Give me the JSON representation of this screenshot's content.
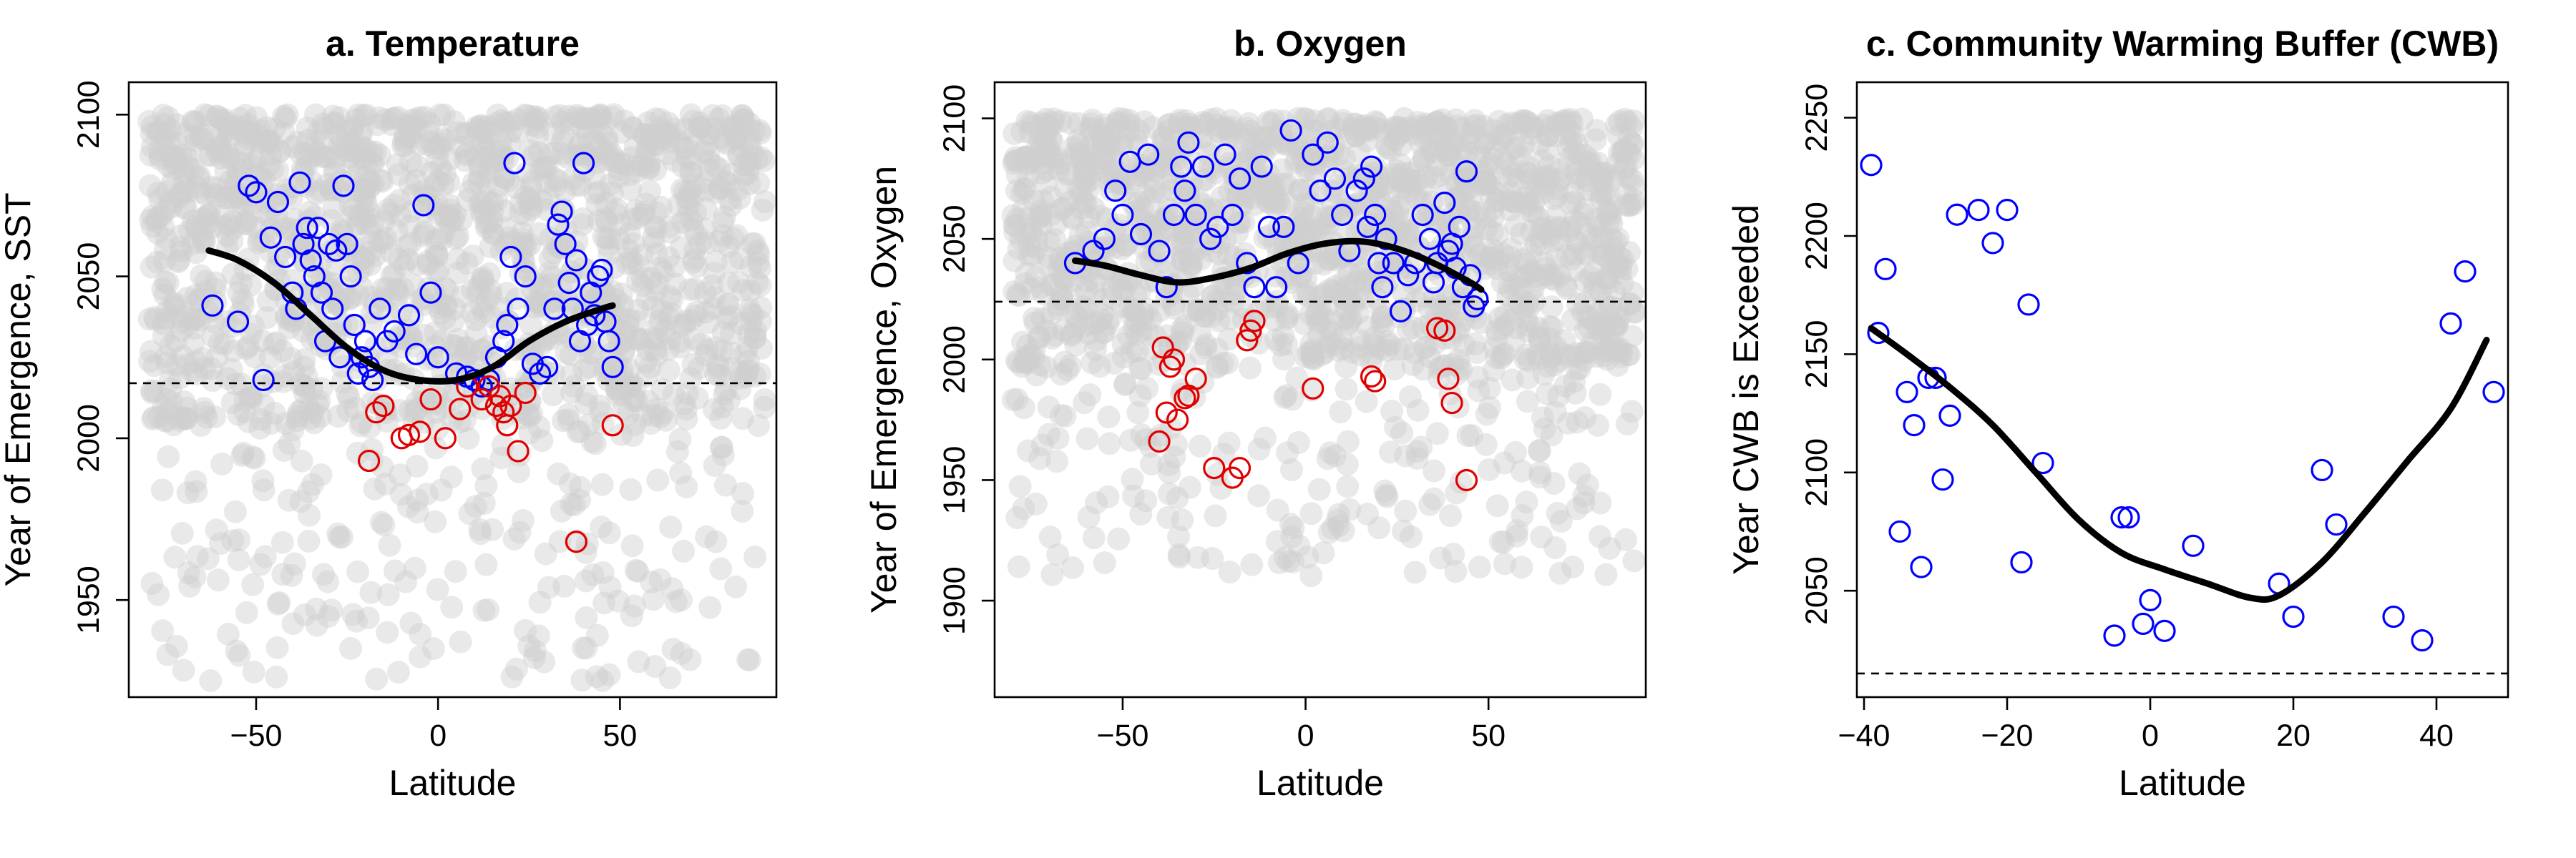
{
  "chart_data": [
    {
      "id": "temperature",
      "type": "scatter",
      "title": "a. Temperature",
      "xlabel": "Latitude",
      "ylabel": "Year of Emergence, SST",
      "xlim": [
        -85,
        93
      ],
      "ylim": [
        1920,
        2110
      ],
      "xticks": [
        -50,
        0,
        50
      ],
      "yticks": [
        1950,
        2000,
        2050,
        2100
      ],
      "reference_line_y": 2017,
      "background_cloud": {
        "color": "#cfcfcf",
        "x_range": [
          -80,
          90
        ],
        "y_range": [
          1925,
          2100
        ]
      },
      "series": [
        {
          "color": "#0000ff",
          "marker": "open-circle",
          "points": [
            [
              -62,
              2041
            ],
            [
              -55,
              2036
            ],
            [
              -52,
              2078
            ],
            [
              -50,
              2076
            ],
            [
              -48,
              2018
            ],
            [
              -46,
              2062
            ],
            [
              -44,
              2073
            ],
            [
              -42,
              2056
            ],
            [
              -40,
              2045
            ],
            [
              -39,
              2040
            ],
            [
              -38,
              2079
            ],
            [
              -37,
              2060
            ],
            [
              -36,
              2065
            ],
            [
              -35,
              2055
            ],
            [
              -34,
              2050
            ],
            [
              -33,
              2065
            ],
            [
              -32,
              2045
            ],
            [
              -31,
              2030
            ],
            [
              -30,
              2060
            ],
            [
              -29,
              2040
            ],
            [
              -28,
              2058
            ],
            [
              -27,
              2025
            ],
            [
              -26,
              2078
            ],
            [
              -25,
              2060
            ],
            [
              -24,
              2050
            ],
            [
              -23,
              2035
            ],
            [
              -22,
              2020
            ],
            [
              -21,
              2025
            ],
            [
              -20,
              2030
            ],
            [
              -19,
              2022
            ],
            [
              -18,
              2018
            ],
            [
              -16,
              2040
            ],
            [
              -14,
              2030
            ],
            [
              -12,
              2033
            ],
            [
              -8,
              2038
            ],
            [
              -6,
              2026
            ],
            [
              -4,
              2072
            ],
            [
              -2,
              2045
            ],
            [
              0,
              2025
            ],
            [
              5,
              2020
            ],
            [
              8,
              2019
            ],
            [
              10,
              2018
            ],
            [
              12,
              2016
            ],
            [
              14,
              2018
            ],
            [
              16,
              2025
            ],
            [
              18,
              2030
            ],
            [
              19,
              2035
            ],
            [
              20,
              2056
            ],
            [
              21,
              2085
            ],
            [
              22,
              2040
            ],
            [
              24,
              2050
            ],
            [
              26,
              2023
            ],
            [
              28,
              2020
            ],
            [
              30,
              2022
            ],
            [
              32,
              2040
            ],
            [
              33,
              2066
            ],
            [
              34,
              2070
            ],
            [
              35,
              2060
            ],
            [
              36,
              2048
            ],
            [
              37,
              2040
            ],
            [
              38,
              2055
            ],
            [
              39,
              2030
            ],
            [
              40,
              2085
            ],
            [
              41,
              2035
            ],
            [
              42,
              2045
            ],
            [
              43,
              2038
            ],
            [
              44,
              2050
            ],
            [
              45,
              2052
            ],
            [
              46,
              2036
            ],
            [
              47,
              2030
            ],
            [
              48,
              2022
            ]
          ]
        },
        {
          "color": "#e00000",
          "marker": "open-circle",
          "points": [
            [
              -19,
              1993
            ],
            [
              -17,
              2008
            ],
            [
              -15,
              2010
            ],
            [
              -10,
              2000
            ],
            [
              -8,
              2001
            ],
            [
              -5,
              2002
            ],
            [
              -2,
              2012
            ],
            [
              2,
              2000
            ],
            [
              6,
              2009
            ],
            [
              8,
              2016
            ],
            [
              12,
              2012
            ],
            [
              14,
              2016
            ],
            [
              16,
              2010
            ],
            [
              17,
              2013
            ],
            [
              18,
              2008
            ],
            [
              19,
              2004
            ],
            [
              20,
              2010
            ],
            [
              22,
              1996
            ],
            [
              24,
              2014
            ],
            [
              38,
              1968
            ],
            [
              48,
              2004
            ]
          ]
        }
      ],
      "trend_line": [
        [
          -63,
          2058
        ],
        [
          -55,
          2055
        ],
        [
          -45,
          2048
        ],
        [
          -35,
          2038
        ],
        [
          -25,
          2028
        ],
        [
          -15,
          2021
        ],
        [
          -5,
          2018
        ],
        [
          5,
          2018
        ],
        [
          15,
          2022
        ],
        [
          25,
          2030
        ],
        [
          35,
          2036
        ],
        [
          45,
          2040
        ],
        [
          48,
          2041
        ]
      ]
    },
    {
      "id": "oxygen",
      "type": "scatter",
      "title": "b. Oxygen",
      "xlabel": "Latitude",
      "ylabel": "Year of Emergence, Oxygen",
      "xlim": [
        -85,
        93
      ],
      "ylim": [
        1860,
        2115
      ],
      "xticks": [
        -50,
        0,
        50
      ],
      "yticks": [
        1900,
        1950,
        2000,
        2050,
        2100
      ],
      "reference_line_y": 2024,
      "background_cloud": {
        "color": "#cfcfcf",
        "x_range": [
          -80,
          90
        ],
        "y_range": [
          1910,
          2100
        ]
      },
      "series": [
        {
          "color": "#0000ff",
          "marker": "open-circle",
          "points": [
            [
              -63,
              2040
            ],
            [
              -58,
              2045
            ],
            [
              -55,
              2050
            ],
            [
              -52,
              2070
            ],
            [
              -50,
              2060
            ],
            [
              -48,
              2082
            ],
            [
              -45,
              2052
            ],
            [
              -43,
              2085
            ],
            [
              -40,
              2045
            ],
            [
              -38,
              2030
            ],
            [
              -36,
              2060
            ],
            [
              -34,
              2080
            ],
            [
              -33,
              2070
            ],
            [
              -32,
              2090
            ],
            [
              -30,
              2060
            ],
            [
              -28,
              2080
            ],
            [
              -26,
              2050
            ],
            [
              -24,
              2055
            ],
            [
              -22,
              2085
            ],
            [
              -20,
              2060
            ],
            [
              -18,
              2075
            ],
            [
              -16,
              2040
            ],
            [
              -14,
              2030
            ],
            [
              -12,
              2080
            ],
            [
              -10,
              2055
            ],
            [
              -8,
              2030
            ],
            [
              -6,
              2055
            ],
            [
              -4,
              2095
            ],
            [
              -2,
              2040
            ],
            [
              2,
              2085
            ],
            [
              4,
              2070
            ],
            [
              6,
              2090
            ],
            [
              8,
              2075
            ],
            [
              10,
              2060
            ],
            [
              12,
              2045
            ],
            [
              14,
              2070
            ],
            [
              16,
              2075
            ],
            [
              17,
              2055
            ],
            [
              18,
              2080
            ],
            [
              19,
              2060
            ],
            [
              20,
              2040
            ],
            [
              21,
              2030
            ],
            [
              22,
              2050
            ],
            [
              24,
              2040
            ],
            [
              26,
              2020
            ],
            [
              28,
              2035
            ],
            [
              30,
              2040
            ],
            [
              32,
              2060
            ],
            [
              34,
              2050
            ],
            [
              35,
              2032
            ],
            [
              36,
              2040
            ],
            [
              38,
              2065
            ],
            [
              39,
              2045
            ],
            [
              40,
              2048
            ],
            [
              41,
              2038
            ],
            [
              42,
              2055
            ],
            [
              43,
              2030
            ],
            [
              44,
              2078
            ],
            [
              45,
              2035
            ],
            [
              46,
              2022
            ],
            [
              47,
              2025
            ]
          ]
        },
        {
          "color": "#e00000",
          "marker": "open-circle",
          "points": [
            [
              -40,
              1966
            ],
            [
              -39,
              2005
            ],
            [
              -38,
              1978
            ],
            [
              -37,
              1997
            ],
            [
              -36,
              2000
            ],
            [
              -35,
              1975
            ],
            [
              -33,
              1984
            ],
            [
              -32,
              1985
            ],
            [
              -30,
              1992
            ],
            [
              -25,
              1955
            ],
            [
              -20,
              1951
            ],
            [
              -18,
              1955
            ],
            [
              -16,
              2008
            ],
            [
              -15,
              2012
            ],
            [
              -14,
              2016
            ],
            [
              2,
              1988
            ],
            [
              18,
              1993
            ],
            [
              19,
              1991
            ],
            [
              36,
              2013
            ],
            [
              38,
              2012
            ],
            [
              39,
              1992
            ],
            [
              40,
              1982
            ],
            [
              44,
              1950
            ]
          ]
        }
      ],
      "trend_line": [
        [
          -63,
          2041
        ],
        [
          -55,
          2039
        ],
        [
          -45,
          2035
        ],
        [
          -35,
          2032
        ],
        [
          -25,
          2034
        ],
        [
          -15,
          2038
        ],
        [
          -5,
          2044
        ],
        [
          5,
          2048
        ],
        [
          15,
          2049
        ],
        [
          25,
          2046
        ],
        [
          35,
          2040
        ],
        [
          45,
          2032
        ],
        [
          48,
          2029
        ]
      ]
    },
    {
      "id": "cwb",
      "type": "scatter",
      "title": "c. Community Warming Buffer (CWB)",
      "xlabel": "Latitude",
      "ylabel": "Year CWB is Exceeded",
      "xlim": [
        -41,
        50
      ],
      "ylim": [
        2005,
        2265
      ],
      "xticks": [
        -40,
        -20,
        0,
        20,
        40
      ],
      "yticks": [
        2050,
        2100,
        2150,
        2200,
        2250
      ],
      "reference_line_y": 2015,
      "series": [
        {
          "color": "#0000ff",
          "marker": "open-circle",
          "points": [
            [
              -39,
              2230
            ],
            [
              -38,
              2159
            ],
            [
              -37,
              2186
            ],
            [
              -35,
              2075
            ],
            [
              -34,
              2134
            ],
            [
              -33,
              2120
            ],
            [
              -32,
              2060
            ],
            [
              -31,
              2140
            ],
            [
              -30,
              2140
            ],
            [
              -29,
              2097
            ],
            [
              -28,
              2124
            ],
            [
              -27,
              2209
            ],
            [
              -24,
              2211
            ],
            [
              -22,
              2197
            ],
            [
              -20,
              2211
            ],
            [
              -18,
              2062
            ],
            [
              -17,
              2171
            ],
            [
              -15,
              2104
            ],
            [
              -5,
              2031
            ],
            [
              -4,
              2081
            ],
            [
              -3,
              2081
            ],
            [
              -1,
              2036
            ],
            [
              0,
              2046
            ],
            [
              2,
              2033
            ],
            [
              6,
              2069
            ],
            [
              18,
              2053
            ],
            [
              20,
              2039
            ],
            [
              24,
              2101
            ],
            [
              26,
              2078
            ],
            [
              34,
              2039
            ],
            [
              38,
              2029
            ],
            [
              42,
              2163
            ],
            [
              44,
              2185
            ],
            [
              48,
              2134
            ]
          ]
        }
      ],
      "trend_line": [
        [
          -39,
          2161
        ],
        [
          -34,
          2150
        ],
        [
          -28,
          2136
        ],
        [
          -22,
          2120
        ],
        [
          -16,
          2100
        ],
        [
          -10,
          2080
        ],
        [
          -4,
          2066
        ],
        [
          2,
          2059
        ],
        [
          8,
          2053
        ],
        [
          14,
          2047
        ],
        [
          18,
          2048
        ],
        [
          24,
          2062
        ],
        [
          30,
          2083
        ],
        [
          36,
          2105
        ],
        [
          42,
          2127
        ],
        [
          47,
          2156
        ]
      ]
    }
  ]
}
